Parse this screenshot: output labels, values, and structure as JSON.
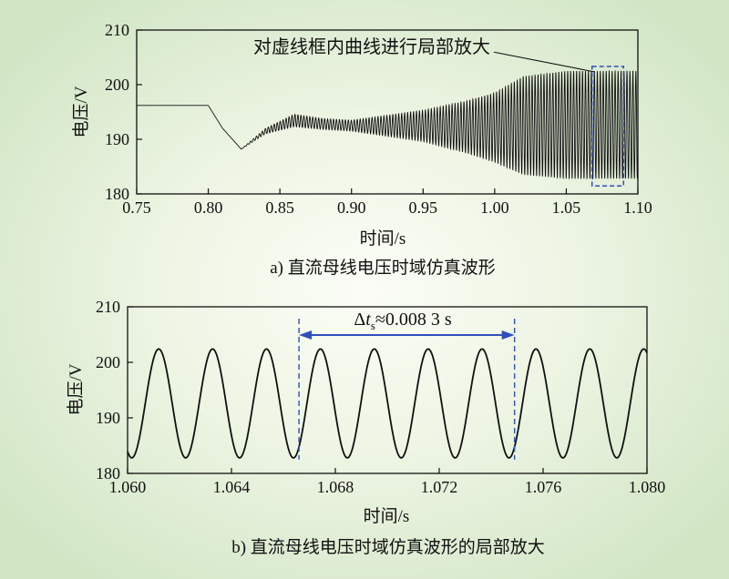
{
  "chart_data": [
    {
      "type": "line",
      "caption": "a) 直流母线电压时域仿真波形",
      "xlabel": "时间/s",
      "ylabel": "电压/V",
      "xlim": [
        0.75,
        1.1
      ],
      "ylim": [
        180,
        210
      ],
      "x_ticks": [
        "0.75",
        "0.80",
        "0.85",
        "0.90",
        "0.95",
        "1.00",
        "1.05",
        "1.10"
      ],
      "y_ticks": [
        "180",
        "190",
        "200",
        "210"
      ],
      "annotation": "对虚线框内曲线进行局部放大",
      "zoom_region": {
        "x": [
          1.068,
          1.09
        ],
        "y": [
          182.3,
          202.5
        ]
      },
      "series": [
        {
          "description": "steady 196 V until 0.80 s, dip to ~188 V at 0.823 s, damped recovery to ~193 V, then growing oscillation saturating at 183–202.5 V",
          "envelope_x": [
            0.75,
            0.8,
            0.81,
            0.823,
            0.84,
            0.86,
            0.88,
            0.9,
            0.95,
            0.98,
            1.0,
            1.02,
            1.05,
            1.1
          ],
          "envelope_upper": [
            196.2,
            196.2,
            192.0,
            188.2,
            192.0,
            194.6,
            193.8,
            193.5,
            195.3,
            197.0,
            198.5,
            201.5,
            202.5,
            202.5
          ],
          "envelope_lower": [
            196.2,
            196.2,
            192.0,
            188.2,
            191.0,
            192.3,
            191.8,
            191.5,
            189.6,
            187.5,
            185.8,
            183.5,
            182.8,
            182.8
          ],
          "oscillation_period_s": 0.00207
        }
      ]
    },
    {
      "type": "line",
      "caption": "b) 直流母线电压时域仿真波形的局部放大",
      "xlabel": "时间/s",
      "ylabel": "电压/V",
      "xlim": [
        1.06,
        1.08
      ],
      "ylim": [
        180,
        210
      ],
      "x_ticks": [
        "1.060",
        "1.064",
        "1.068",
        "1.072",
        "1.076",
        "1.080"
      ],
      "y_ticks": [
        "180",
        "190",
        "200",
        "210"
      ],
      "measurement": {
        "prefix": "Δ",
        "var": "t",
        "sub": "s",
        "value": "≈0.008 3 s",
        "x_start": 1.0666,
        "x_end": 1.0749
      },
      "series": [
        {
          "description": "sinusoid ≈192.6 ± 9.8 V, period ≈0.002075 s",
          "mean": 192.6,
          "amplitude": 9.8,
          "period_s": 0.002075,
          "first_peak_x": 1.0612
        }
      ]
    }
  ],
  "colors": {
    "line": "#111111",
    "annotation": "#2f4fbf",
    "axis": "#111111"
  }
}
